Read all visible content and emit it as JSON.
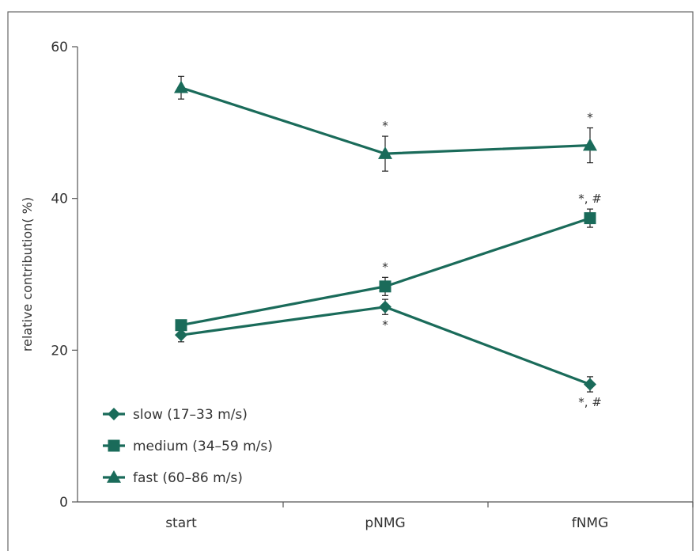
{
  "chart_data": {
    "type": "line",
    "xlabel": "",
    "ylabel": "relative contribution( %)",
    "ylim": [
      0,
      60
    ],
    "yticks": [
      0,
      20,
      40,
      60
    ],
    "categories": [
      "start",
      "pNMG",
      "fNMG"
    ],
    "grid": false,
    "legend_position": "bottom-left",
    "color": "#1a6b5a",
    "series": [
      {
        "name": "slow (17–33 m/s)",
        "marker": "diamond",
        "values": [
          22.0,
          25.7,
          15.5
        ],
        "errors": [
          0.9,
          1.0,
          1.0
        ],
        "annotations": [
          "",
          "*",
          "*, #"
        ],
        "annotation_side": [
          "",
          "below",
          "below"
        ]
      },
      {
        "name": "medium (34–59 m/s)",
        "marker": "square",
        "values": [
          23.3,
          28.4,
          37.4
        ],
        "errors": [
          0.5,
          1.2,
          1.2
        ],
        "annotations": [
          "",
          "*",
          "*, #"
        ],
        "annotation_side": [
          "",
          "above",
          "above"
        ]
      },
      {
        "name": "fast (60–86 m/s)",
        "marker": "triangle",
        "values": [
          54.6,
          45.9,
          47.0
        ],
        "errors": [
          1.5,
          2.3,
          2.3
        ],
        "annotations": [
          "",
          "*",
          "*"
        ],
        "annotation_side": [
          "",
          "above",
          "above"
        ]
      }
    ]
  }
}
